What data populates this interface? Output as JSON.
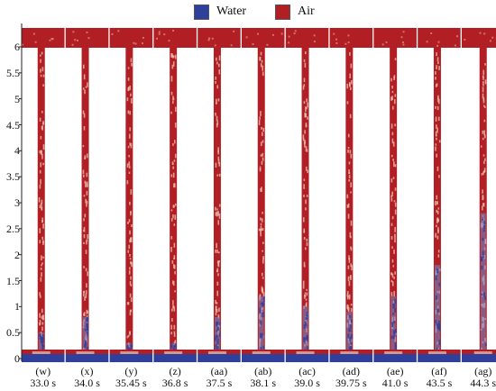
{
  "legend": [
    {
      "label": "Water",
      "color": "#2e3f9c"
    },
    {
      "label": "Air",
      "color": "#b11f24"
    }
  ],
  "y_ticks": [
    "0",
    "0.5",
    "1",
    "1.5",
    "2",
    "2.5",
    "3",
    "3.5",
    "4",
    "4.5",
    "5",
    "5.5",
    "6"
  ],
  "colors": {
    "air": "#b11f24",
    "water": "#2e3f9c",
    "mix_light": "#e9c7b8",
    "mix_blue": "#6f8ad0",
    "axis": "#222222"
  },
  "panels": [
    {
      "label": "(w)",
      "time": "33.0 s",
      "water_column_height": 0.5
    },
    {
      "label": "(x)",
      "time": "34.0 s",
      "water_column_height": 0.8
    },
    {
      "label": "(y)",
      "time": "35.45 s",
      "water_column_height": 0.3
    },
    {
      "label": "(z)",
      "time": "36.8 s",
      "water_column_height": 0.3
    },
    {
      "label": "(aa)",
      "time": "37.5 s",
      "water_column_height": 0.8
    },
    {
      "label": "(ab)",
      "time": "38.1 s",
      "water_column_height": 1.2
    },
    {
      "label": "(ac)",
      "time": "39.0 s",
      "water_column_height": 1.0
    },
    {
      "label": "(ad)",
      "time": "39.75 s",
      "water_column_height": 0.9
    },
    {
      "label": "(ae)",
      "time": "41.0 s",
      "water_column_height": 1.2
    },
    {
      "label": "(af)",
      "time": "43.5 s",
      "water_column_height": 1.8
    },
    {
      "label": "(ag)",
      "time": "44.3 s",
      "water_column_height": 2.8
    }
  ]
}
